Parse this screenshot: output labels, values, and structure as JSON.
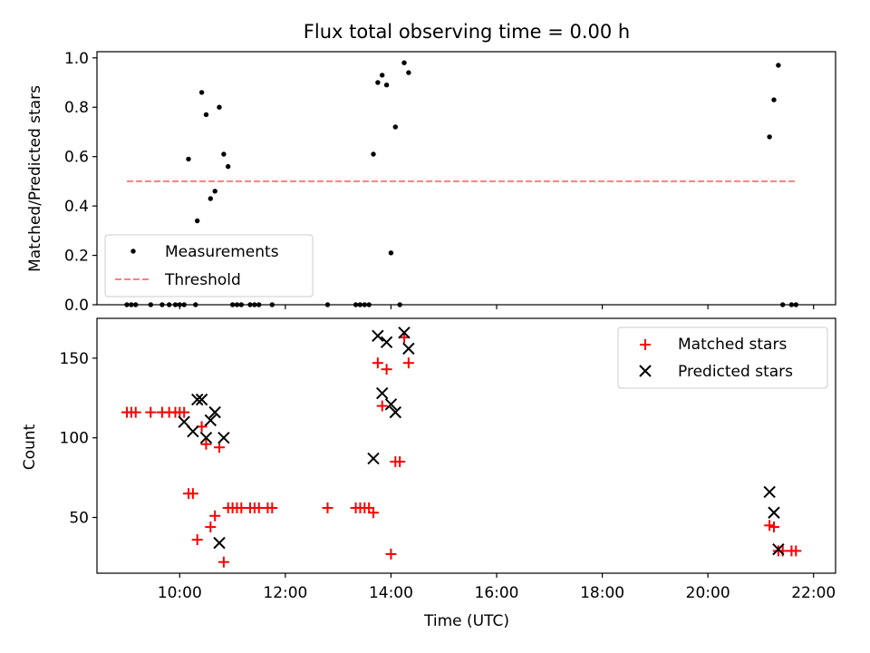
{
  "chart_data": [
    {
      "type": "scatter",
      "title": "Flux total observing time = 0.00 h",
      "xlabel": "",
      "ylabel": "Matched/Predicted stars",
      "xlim": [
        "08:26",
        "22:25"
      ],
      "ylim": [
        0,
        1.025
      ],
      "yticks": [
        "0.0",
        "0.2",
        "0.4",
        "0.6",
        "0.8",
        "1.0"
      ],
      "legend_position": "lower-left",
      "grid": false,
      "series": [
        {
          "name": "Measurements",
          "marker": "dot",
          "color": "#000000",
          "points": [
            [
              "09:00",
              0
            ],
            [
              "09:05",
              0
            ],
            [
              "09:10",
              0
            ],
            [
              "09:27",
              0
            ],
            [
              "09:40",
              0
            ],
            [
              "09:48",
              0
            ],
            [
              "09:55",
              0
            ],
            [
              "10:00",
              0
            ],
            [
              "10:05",
              0
            ],
            [
              "10:10",
              0.59
            ],
            [
              "10:18",
              0
            ],
            [
              "10:20",
              0.34
            ],
            [
              "10:25",
              0.86
            ],
            [
              "10:30",
              0.77
            ],
            [
              "10:35",
              0.43
            ],
            [
              "10:40",
              0.46
            ],
            [
              "10:45",
              0.8
            ],
            [
              "10:50",
              0.61
            ],
            [
              "10:55",
              0.56
            ],
            [
              "11:00",
              0
            ],
            [
              "11:05",
              0
            ],
            [
              "11:10",
              0
            ],
            [
              "11:20",
              0
            ],
            [
              "11:25",
              0
            ],
            [
              "11:30",
              0
            ],
            [
              "11:45",
              0
            ],
            [
              "12:48",
              0
            ],
            [
              "13:20",
              0
            ],
            [
              "13:25",
              0
            ],
            [
              "13:30",
              0
            ],
            [
              "13:35",
              0
            ],
            [
              "13:40",
              0.61
            ],
            [
              "13:45",
              0.9
            ],
            [
              "13:50",
              0.93
            ],
            [
              "13:55",
              0.89
            ],
            [
              "14:00",
              0.21
            ],
            [
              "14:05",
              0.72
            ],
            [
              "14:10",
              0
            ],
            [
              "14:15",
              0.98
            ],
            [
              "14:20",
              0.94
            ],
            [
              "21:10",
              0.68
            ],
            [
              "21:15",
              0.83
            ],
            [
              "21:20",
              0.97
            ],
            [
              "21:25",
              0
            ],
            [
              "21:35",
              0
            ],
            [
              "21:40",
              0
            ]
          ]
        },
        {
          "name": "Threshold",
          "style": "dashed",
          "color": "#ff7f7f",
          "points": [
            [
              "09:00",
              0.5
            ],
            [
              "21:40",
              0.5
            ]
          ]
        }
      ]
    },
    {
      "type": "scatter",
      "title": "",
      "xlabel": "Time (UTC)",
      "ylabel": "Count",
      "xlim": [
        "08:26",
        "22:25"
      ],
      "ylim": [
        15,
        175
      ],
      "yticks": [
        "50",
        "100",
        "150"
      ],
      "xticks": [
        "10:00",
        "12:00",
        "14:00",
        "16:00",
        "18:00",
        "20:00",
        "22:00"
      ],
      "legend_position": "upper-right",
      "grid": false,
      "series": [
        {
          "name": "Matched stars",
          "marker": "plus",
          "color": "#ff0000",
          "points": [
            [
              "09:00",
              116
            ],
            [
              "09:05",
              116
            ],
            [
              "09:10",
              116
            ],
            [
              "09:27",
              116
            ],
            [
              "09:40",
              116
            ],
            [
              "09:48",
              116
            ],
            [
              "09:55",
              116
            ],
            [
              "10:00",
              116
            ],
            [
              "10:05",
              116
            ],
            [
              "10:10",
              65
            ],
            [
              "10:15",
              65
            ],
            [
              "10:20",
              36
            ],
            [
              "10:25",
              107
            ],
            [
              "10:30",
              96
            ],
            [
              "10:35",
              44
            ],
            [
              "10:40",
              51
            ],
            [
              "10:45",
              94
            ],
            [
              "10:50",
              22
            ],
            [
              "10:55",
              56
            ],
            [
              "11:00",
              56
            ],
            [
              "11:05",
              56
            ],
            [
              "11:10",
              56
            ],
            [
              "11:20",
              56
            ],
            [
              "11:25",
              56
            ],
            [
              "11:30",
              56
            ],
            [
              "11:40",
              56
            ],
            [
              "11:45",
              56
            ],
            [
              "12:48",
              56
            ],
            [
              "13:20",
              56
            ],
            [
              "13:25",
              56
            ],
            [
              "13:30",
              56
            ],
            [
              "13:35",
              56
            ],
            [
              "13:40",
              53
            ],
            [
              "13:45",
              147
            ],
            [
              "13:50",
              120
            ],
            [
              "13:55",
              143
            ],
            [
              "14:00",
              27
            ],
            [
              "14:05",
              85
            ],
            [
              "14:10",
              85
            ],
            [
              "14:15",
              163
            ],
            [
              "14:20",
              147
            ],
            [
              "21:10",
              45
            ],
            [
              "21:15",
              44
            ],
            [
              "21:20",
              29
            ],
            [
              "21:25",
              29
            ],
            [
              "21:35",
              29
            ],
            [
              "21:40",
              29
            ]
          ]
        },
        {
          "name": "Predicted stars",
          "marker": "x",
          "color": "#000000",
          "points": [
            [
              "10:05",
              110
            ],
            [
              "10:15",
              104
            ],
            [
              "10:20",
              124
            ],
            [
              "10:25",
              124
            ],
            [
              "10:30",
              100
            ],
            [
              "10:35",
              111
            ],
            [
              "10:40",
              116
            ],
            [
              "10:45",
              34
            ],
            [
              "10:50",
              100
            ],
            [
              "13:40",
              87
            ],
            [
              "13:45",
              164
            ],
            [
              "13:50",
              128
            ],
            [
              "13:55",
              160
            ],
            [
              "14:00",
              121
            ],
            [
              "14:05",
              116
            ],
            [
              "14:15",
              166
            ],
            [
              "14:20",
              156
            ],
            [
              "21:10",
              66
            ],
            [
              "21:15",
              53
            ],
            [
              "21:20",
              30
            ]
          ]
        }
      ]
    }
  ]
}
